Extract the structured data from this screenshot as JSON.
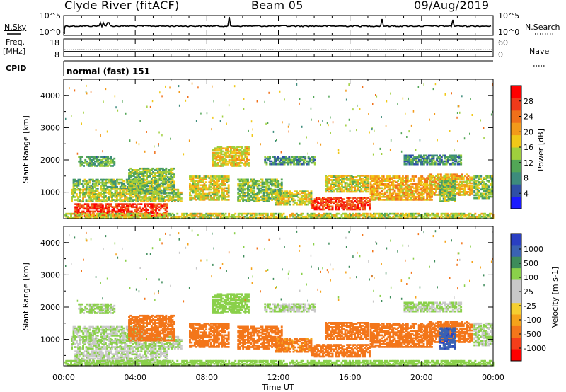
{
  "header": {
    "title": "Clyde River (fitACF)",
    "beam": "Beam 05",
    "date": "09/Aug/2019"
  },
  "left_labels": {
    "nsky": "N.Sky",
    "freq": "Freq.",
    "freq_unit": "[MHz]",
    "cpid": "CPID"
  },
  "right_labels": {
    "nsearch": "N.Search",
    "nave": "Nave"
  },
  "cpid_text": "normal (fast) 151",
  "colors": {
    "power_scale": [
      "#1a1aff",
      "#2f4fa6",
      "#3d8c7c",
      "#52a656",
      "#9fcf3d",
      "#f0c818",
      "#f39a1a",
      "#f0701a",
      "#f03a1a",
      "#ff0000"
    ],
    "velocity_scale": [
      "#ff0000",
      "#f43e1a",
      "#f3761a",
      "#f5a31a",
      "#f5cf30",
      "#c8c8c8",
      "#c8c8c8",
      "#8ad04a",
      "#3d8c5a",
      "#3a62b2",
      "#2a3fc2"
    ]
  },
  "chart_data": [
    {
      "type": "line",
      "name_left": "N.Sky",
      "name_right": "N.Search",
      "y_ticks_left": [
        "10^5",
        "10^0"
      ],
      "y_ticks_right": [
        "10^5",
        "10^0"
      ]
    },
    {
      "type": "line",
      "name_left": "Freq. [MHz]",
      "name_right": "Nave",
      "y_ticks_left": [
        "18",
        "8"
      ],
      "y_ticks_right": [
        "60",
        "0"
      ],
      "freq_mhz": 10.8,
      "nave": 23
    },
    {
      "type": "heatmap",
      "quantity": "Power",
      "ylabel": "Slant Range [km]",
      "ylim": [
        180,
        4500
      ],
      "y_ticks": [
        "1000",
        "2000",
        "3000",
        "4000"
      ],
      "colorbar_label": "Power [dB]",
      "colorbar_ticks": [
        "4",
        "8",
        "12",
        "16",
        "20",
        "24",
        "28"
      ],
      "range_dB": [
        0,
        32
      ]
    },
    {
      "type": "heatmap",
      "quantity": "Velocity",
      "ylabel": "Slant Range [km]",
      "ylim": [
        180,
        4500
      ],
      "y_ticks": [
        "1000",
        "2000",
        "3000",
        "4000"
      ],
      "colorbar_label": "Velocity [m s-1]",
      "colorbar_ticks": [
        "1000",
        "500",
        "100",
        "25",
        "-25",
        "-100",
        "-500",
        "-1000"
      ],
      "x_ticks": [
        "00:00",
        "04:00",
        "08:00",
        "12:00",
        "16:00",
        "20:00",
        "00:00"
      ],
      "xlabel": "Time UT"
    }
  ],
  "regions": [
    {
      "t0": 0.8,
      "t1": 2.8,
      "r0": 1800,
      "r1": 2100,
      "p": 11,
      "v": 30
    },
    {
      "t0": 0.5,
      "t1": 4.5,
      "r0": 1100,
      "r1": 1400,
      "p": 12,
      "v": 25
    },
    {
      "t0": 0.4,
      "t1": 6.6,
      "r0": 700,
      "r1": 1100,
      "p": 15,
      "v": 25
    },
    {
      "t0": 0.6,
      "t1": 5.8,
      "r0": 250,
      "r1": 650,
      "p": 28,
      "v": 15
    },
    {
      "t0": 3.6,
      "t1": 6.2,
      "r0": 950,
      "r1": 1750,
      "p": 13,
      "v": -170
    },
    {
      "t0": 7.0,
      "t1": 9.2,
      "r0": 750,
      "r1": 1500,
      "p": 17,
      "v": -240
    },
    {
      "t0": 8.3,
      "t1": 10.3,
      "r0": 1800,
      "r1": 2400,
      "p": 18,
      "v": 45
    },
    {
      "t0": 9.7,
      "t1": 12.2,
      "r0": 700,
      "r1": 1400,
      "p": 13,
      "v": -160
    },
    {
      "t0": 11.2,
      "t1": 14.0,
      "r0": 1850,
      "r1": 2100,
      "p": 9,
      "v": 25
    },
    {
      "t0": 11.8,
      "t1": 13.8,
      "r0": 600,
      "r1": 1050,
      "p": 16,
      "v": -120
    },
    {
      "t0": 13.8,
      "t1": 17.1,
      "r0": 450,
      "r1": 850,
      "p": 27,
      "v": -160
    },
    {
      "t0": 14.6,
      "t1": 17.0,
      "r0": 1000,
      "r1": 1500,
      "p": 16,
      "v": -280
    },
    {
      "t0": 17.1,
      "t1": 20.6,
      "r0": 750,
      "r1": 1500,
      "p": 20,
      "v": -230
    },
    {
      "t0": 19.0,
      "t1": 22.2,
      "r0": 1850,
      "r1": 2150,
      "p": 9,
      "v": 25
    },
    {
      "t0": 20.4,
      "t1": 22.8,
      "r0": 900,
      "r1": 1550,
      "p": 19,
      "v": -200
    },
    {
      "t0": 21.0,
      "t1": 21.9,
      "r0": 700,
      "r1": 1350,
      "p": 13,
      "v": 850
    },
    {
      "t0": 22.9,
      "t1": 23.9,
      "r0": 800,
      "r1": 1500,
      "p": 13,
      "v": 25
    },
    {
      "t0": 0.0,
      "t1": 24.0,
      "r0": 180,
      "r1": 350,
      "p": 16,
      "v": 60
    }
  ]
}
